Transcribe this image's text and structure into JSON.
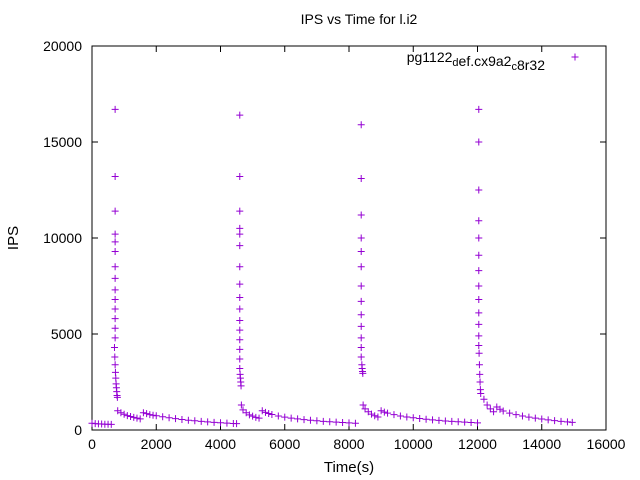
{
  "chart_data": {
    "type": "scatter",
    "title": "IPS vs Time for l.i2",
    "xlabel": "Time(s)",
    "ylabel": "IPS",
    "xlim": [
      0,
      16000
    ],
    "ylim": [
      0,
      20000
    ],
    "xticks": [
      0,
      2000,
      4000,
      6000,
      8000,
      10000,
      12000,
      14000,
      16000
    ],
    "yticks": [
      0,
      5000,
      10000,
      15000,
      20000
    ],
    "grid": false,
    "legend_position": "top-right",
    "series": [
      {
        "name": "pg1122_def.cx9a2_c8r32",
        "color": "#9400d3",
        "marker": "plus",
        "points": [
          [
            0,
            350
          ],
          [
            100,
            330
          ],
          [
            200,
            320
          ],
          [
            300,
            310
          ],
          [
            400,
            300
          ],
          [
            500,
            300
          ],
          [
            600,
            295
          ],
          [
            700,
            4300
          ],
          [
            710,
            3800
          ],
          [
            720,
            3400
          ],
          [
            730,
            3000
          ],
          [
            740,
            2700
          ],
          [
            750,
            2400
          ],
          [
            760,
            2200
          ],
          [
            770,
            2000
          ],
          [
            780,
            1800
          ],
          [
            790,
            1700
          ],
          [
            720,
            16700
          ],
          [
            720,
            13200
          ],
          [
            720,
            11400
          ],
          [
            720,
            10200
          ],
          [
            720,
            9800
          ],
          [
            720,
            9300
          ],
          [
            720,
            8500
          ],
          [
            720,
            7900
          ],
          [
            720,
            7300
          ],
          [
            720,
            6800
          ],
          [
            720,
            6300
          ],
          [
            720,
            5800
          ],
          [
            720,
            5300
          ],
          [
            720,
            4800
          ],
          [
            800,
            1000
          ],
          [
            900,
            900
          ],
          [
            1000,
            820
          ],
          [
            1100,
            750
          ],
          [
            1200,
            700
          ],
          [
            1300,
            660
          ],
          [
            1400,
            620
          ],
          [
            1500,
            580
          ],
          [
            1600,
            900
          ],
          [
            1700,
            850
          ],
          [
            1800,
            800
          ],
          [
            1900,
            770
          ],
          [
            2000,
            740
          ],
          [
            2200,
            690
          ],
          [
            2400,
            640
          ],
          [
            2600,
            590
          ],
          [
            2800,
            550
          ],
          [
            3000,
            510
          ],
          [
            3200,
            480
          ],
          [
            3400,
            450
          ],
          [
            3600,
            420
          ],
          [
            3800,
            400
          ],
          [
            4000,
            380
          ],
          [
            4200,
            360
          ],
          [
            4400,
            340
          ],
          [
            4500,
            330
          ],
          [
            4600,
            3200
          ],
          [
            4610,
            2900
          ],
          [
            4620,
            2700
          ],
          [
            4630,
            2500
          ],
          [
            4640,
            2300
          ],
          [
            4600,
            16400
          ],
          [
            4600,
            13200
          ],
          [
            4600,
            11400
          ],
          [
            4600,
            10500
          ],
          [
            4600,
            10200
          ],
          [
            4600,
            9600
          ],
          [
            4600,
            8500
          ],
          [
            4600,
            7600
          ],
          [
            4600,
            6900
          ],
          [
            4600,
            6300
          ],
          [
            4600,
            5700
          ],
          [
            4600,
            5200
          ],
          [
            4600,
            4700
          ],
          [
            4600,
            4200
          ],
          [
            4600,
            3700
          ],
          [
            4650,
            1300
          ],
          [
            4700,
            1050
          ],
          [
            4800,
            900
          ],
          [
            4900,
            790
          ],
          [
            5000,
            720
          ],
          [
            5100,
            660
          ],
          [
            5200,
            620
          ],
          [
            5300,
            1000
          ],
          [
            5400,
            920
          ],
          [
            5500,
            860
          ],
          [
            5600,
            810
          ],
          [
            5800,
            730
          ],
          [
            6000,
            670
          ],
          [
            6200,
            620
          ],
          [
            6400,
            580
          ],
          [
            6600,
            540
          ],
          [
            6800,
            510
          ],
          [
            7000,
            480
          ],
          [
            7200,
            450
          ],
          [
            7400,
            430
          ],
          [
            7600,
            410
          ],
          [
            7800,
            390
          ],
          [
            8000,
            370
          ],
          [
            8200,
            350
          ],
          [
            8400,
            3400
          ],
          [
            8410,
            3200
          ],
          [
            8420,
            3050
          ],
          [
            8430,
            2950
          ],
          [
            8380,
            15900
          ],
          [
            8380,
            13100
          ],
          [
            8380,
            11200
          ],
          [
            8380,
            10000
          ],
          [
            8380,
            9300
          ],
          [
            8380,
            8500
          ],
          [
            8380,
            7500
          ],
          [
            8380,
            6700
          ],
          [
            8380,
            6000
          ],
          [
            8380,
            5400
          ],
          [
            8380,
            4800
          ],
          [
            8380,
            4300
          ],
          [
            8380,
            3800
          ],
          [
            8440,
            1300
          ],
          [
            8500,
            1100
          ],
          [
            8600,
            950
          ],
          [
            8700,
            830
          ],
          [
            8800,
            740
          ],
          [
            8900,
            680
          ],
          [
            9000,
            1000
          ],
          [
            9100,
            930
          ],
          [
            9200,
            880
          ],
          [
            9400,
            800
          ],
          [
            9600,
            730
          ],
          [
            9800,
            680
          ],
          [
            10000,
            640
          ],
          [
            10200,
            600
          ],
          [
            10400,
            560
          ],
          [
            10600,
            530
          ],
          [
            10800,
            500
          ],
          [
            11000,
            470
          ],
          [
            11200,
            450
          ],
          [
            11400,
            430
          ],
          [
            11600,
            410
          ],
          [
            11800,
            390
          ],
          [
            12000,
            370
          ],
          [
            12050,
            4000
          ],
          [
            12060,
            3400
          ],
          [
            12070,
            2900
          ],
          [
            12080,
            2500
          ],
          [
            12090,
            2100
          ],
          [
            12040,
            16700
          ],
          [
            12040,
            15000
          ],
          [
            12040,
            12500
          ],
          [
            12040,
            10900
          ],
          [
            12040,
            10000
          ],
          [
            12040,
            9100
          ],
          [
            12040,
            8300
          ],
          [
            12040,
            7500
          ],
          [
            12040,
            6800
          ],
          [
            12040,
            6100
          ],
          [
            12040,
            5500
          ],
          [
            12040,
            4900
          ],
          [
            12040,
            4400
          ],
          [
            12100,
            1900
          ],
          [
            12200,
            1600
          ],
          [
            12300,
            1300
          ],
          [
            12400,
            1100
          ],
          [
            12500,
            950
          ],
          [
            12600,
            1200
          ],
          [
            12700,
            1080
          ],
          [
            12800,
            990
          ],
          [
            13000,
            880
          ],
          [
            13200,
            800
          ],
          [
            13400,
            730
          ],
          [
            13600,
            670
          ],
          [
            13800,
            620
          ],
          [
            14000,
            570
          ],
          [
            14200,
            530
          ],
          [
            14400,
            490
          ],
          [
            14600,
            450
          ],
          [
            14800,
            420
          ],
          [
            14950,
            400
          ]
        ]
      }
    ]
  }
}
